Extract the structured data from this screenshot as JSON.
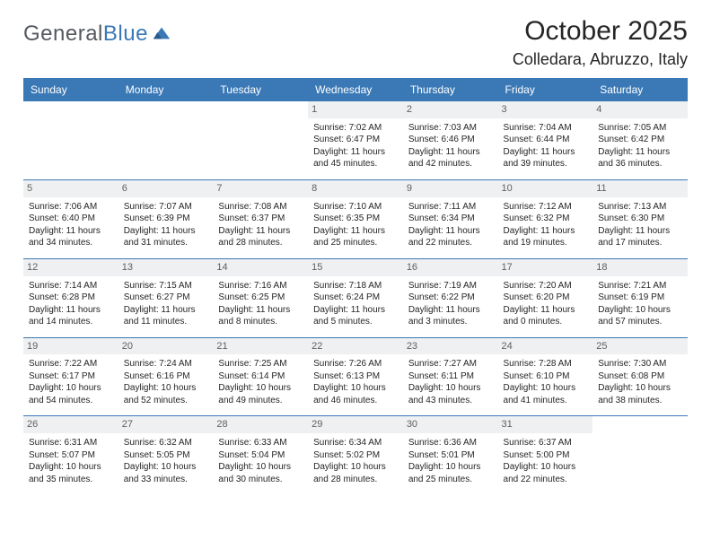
{
  "brand": {
    "name_part1": "General",
    "name_part2": "Blue"
  },
  "title": {
    "month": "October 2025",
    "location": "Colledara, Abruzzo, Italy"
  },
  "colors": {
    "accent": "#3b79b6",
    "header_text": "#ffffff",
    "daynum_bg": "#eef0f1",
    "border": "#3b79b6",
    "text": "#252525"
  },
  "day_headers": [
    "Sunday",
    "Monday",
    "Tuesday",
    "Wednesday",
    "Thursday",
    "Friday",
    "Saturday"
  ],
  "weeks": [
    [
      {
        "empty": true
      },
      {
        "empty": true
      },
      {
        "empty": true
      },
      {
        "n": "1",
        "sr": "Sunrise: 7:02 AM",
        "ss": "Sunset: 6:47 PM",
        "d1": "Daylight: 11 hours",
        "d2": "and 45 minutes."
      },
      {
        "n": "2",
        "sr": "Sunrise: 7:03 AM",
        "ss": "Sunset: 6:46 PM",
        "d1": "Daylight: 11 hours",
        "d2": "and 42 minutes."
      },
      {
        "n": "3",
        "sr": "Sunrise: 7:04 AM",
        "ss": "Sunset: 6:44 PM",
        "d1": "Daylight: 11 hours",
        "d2": "and 39 minutes."
      },
      {
        "n": "4",
        "sr": "Sunrise: 7:05 AM",
        "ss": "Sunset: 6:42 PM",
        "d1": "Daylight: 11 hours",
        "d2": "and 36 minutes."
      }
    ],
    [
      {
        "n": "5",
        "sr": "Sunrise: 7:06 AM",
        "ss": "Sunset: 6:40 PM",
        "d1": "Daylight: 11 hours",
        "d2": "and 34 minutes."
      },
      {
        "n": "6",
        "sr": "Sunrise: 7:07 AM",
        "ss": "Sunset: 6:39 PM",
        "d1": "Daylight: 11 hours",
        "d2": "and 31 minutes."
      },
      {
        "n": "7",
        "sr": "Sunrise: 7:08 AM",
        "ss": "Sunset: 6:37 PM",
        "d1": "Daylight: 11 hours",
        "d2": "and 28 minutes."
      },
      {
        "n": "8",
        "sr": "Sunrise: 7:10 AM",
        "ss": "Sunset: 6:35 PM",
        "d1": "Daylight: 11 hours",
        "d2": "and 25 minutes."
      },
      {
        "n": "9",
        "sr": "Sunrise: 7:11 AM",
        "ss": "Sunset: 6:34 PM",
        "d1": "Daylight: 11 hours",
        "d2": "and 22 minutes."
      },
      {
        "n": "10",
        "sr": "Sunrise: 7:12 AM",
        "ss": "Sunset: 6:32 PM",
        "d1": "Daylight: 11 hours",
        "d2": "and 19 minutes."
      },
      {
        "n": "11",
        "sr": "Sunrise: 7:13 AM",
        "ss": "Sunset: 6:30 PM",
        "d1": "Daylight: 11 hours",
        "d2": "and 17 minutes."
      }
    ],
    [
      {
        "n": "12",
        "sr": "Sunrise: 7:14 AM",
        "ss": "Sunset: 6:28 PM",
        "d1": "Daylight: 11 hours",
        "d2": "and 14 minutes."
      },
      {
        "n": "13",
        "sr": "Sunrise: 7:15 AM",
        "ss": "Sunset: 6:27 PM",
        "d1": "Daylight: 11 hours",
        "d2": "and 11 minutes."
      },
      {
        "n": "14",
        "sr": "Sunrise: 7:16 AM",
        "ss": "Sunset: 6:25 PM",
        "d1": "Daylight: 11 hours",
        "d2": "and 8 minutes."
      },
      {
        "n": "15",
        "sr": "Sunrise: 7:18 AM",
        "ss": "Sunset: 6:24 PM",
        "d1": "Daylight: 11 hours",
        "d2": "and 5 minutes."
      },
      {
        "n": "16",
        "sr": "Sunrise: 7:19 AM",
        "ss": "Sunset: 6:22 PM",
        "d1": "Daylight: 11 hours",
        "d2": "and 3 minutes."
      },
      {
        "n": "17",
        "sr": "Sunrise: 7:20 AM",
        "ss": "Sunset: 6:20 PM",
        "d1": "Daylight: 11 hours",
        "d2": "and 0 minutes."
      },
      {
        "n": "18",
        "sr": "Sunrise: 7:21 AM",
        "ss": "Sunset: 6:19 PM",
        "d1": "Daylight: 10 hours",
        "d2": "and 57 minutes."
      }
    ],
    [
      {
        "n": "19",
        "sr": "Sunrise: 7:22 AM",
        "ss": "Sunset: 6:17 PM",
        "d1": "Daylight: 10 hours",
        "d2": "and 54 minutes."
      },
      {
        "n": "20",
        "sr": "Sunrise: 7:24 AM",
        "ss": "Sunset: 6:16 PM",
        "d1": "Daylight: 10 hours",
        "d2": "and 52 minutes."
      },
      {
        "n": "21",
        "sr": "Sunrise: 7:25 AM",
        "ss": "Sunset: 6:14 PM",
        "d1": "Daylight: 10 hours",
        "d2": "and 49 minutes."
      },
      {
        "n": "22",
        "sr": "Sunrise: 7:26 AM",
        "ss": "Sunset: 6:13 PM",
        "d1": "Daylight: 10 hours",
        "d2": "and 46 minutes."
      },
      {
        "n": "23",
        "sr": "Sunrise: 7:27 AM",
        "ss": "Sunset: 6:11 PM",
        "d1": "Daylight: 10 hours",
        "d2": "and 43 minutes."
      },
      {
        "n": "24",
        "sr": "Sunrise: 7:28 AM",
        "ss": "Sunset: 6:10 PM",
        "d1": "Daylight: 10 hours",
        "d2": "and 41 minutes."
      },
      {
        "n": "25",
        "sr": "Sunrise: 7:30 AM",
        "ss": "Sunset: 6:08 PM",
        "d1": "Daylight: 10 hours",
        "d2": "and 38 minutes."
      }
    ],
    [
      {
        "n": "26",
        "sr": "Sunrise: 6:31 AM",
        "ss": "Sunset: 5:07 PM",
        "d1": "Daylight: 10 hours",
        "d2": "and 35 minutes."
      },
      {
        "n": "27",
        "sr": "Sunrise: 6:32 AM",
        "ss": "Sunset: 5:05 PM",
        "d1": "Daylight: 10 hours",
        "d2": "and 33 minutes."
      },
      {
        "n": "28",
        "sr": "Sunrise: 6:33 AM",
        "ss": "Sunset: 5:04 PM",
        "d1": "Daylight: 10 hours",
        "d2": "and 30 minutes."
      },
      {
        "n": "29",
        "sr": "Sunrise: 6:34 AM",
        "ss": "Sunset: 5:02 PM",
        "d1": "Daylight: 10 hours",
        "d2": "and 28 minutes."
      },
      {
        "n": "30",
        "sr": "Sunrise: 6:36 AM",
        "ss": "Sunset: 5:01 PM",
        "d1": "Daylight: 10 hours",
        "d2": "and 25 minutes."
      },
      {
        "n": "31",
        "sr": "Sunrise: 6:37 AM",
        "ss": "Sunset: 5:00 PM",
        "d1": "Daylight: 10 hours",
        "d2": "and 22 minutes."
      },
      {
        "empty": true
      }
    ]
  ]
}
